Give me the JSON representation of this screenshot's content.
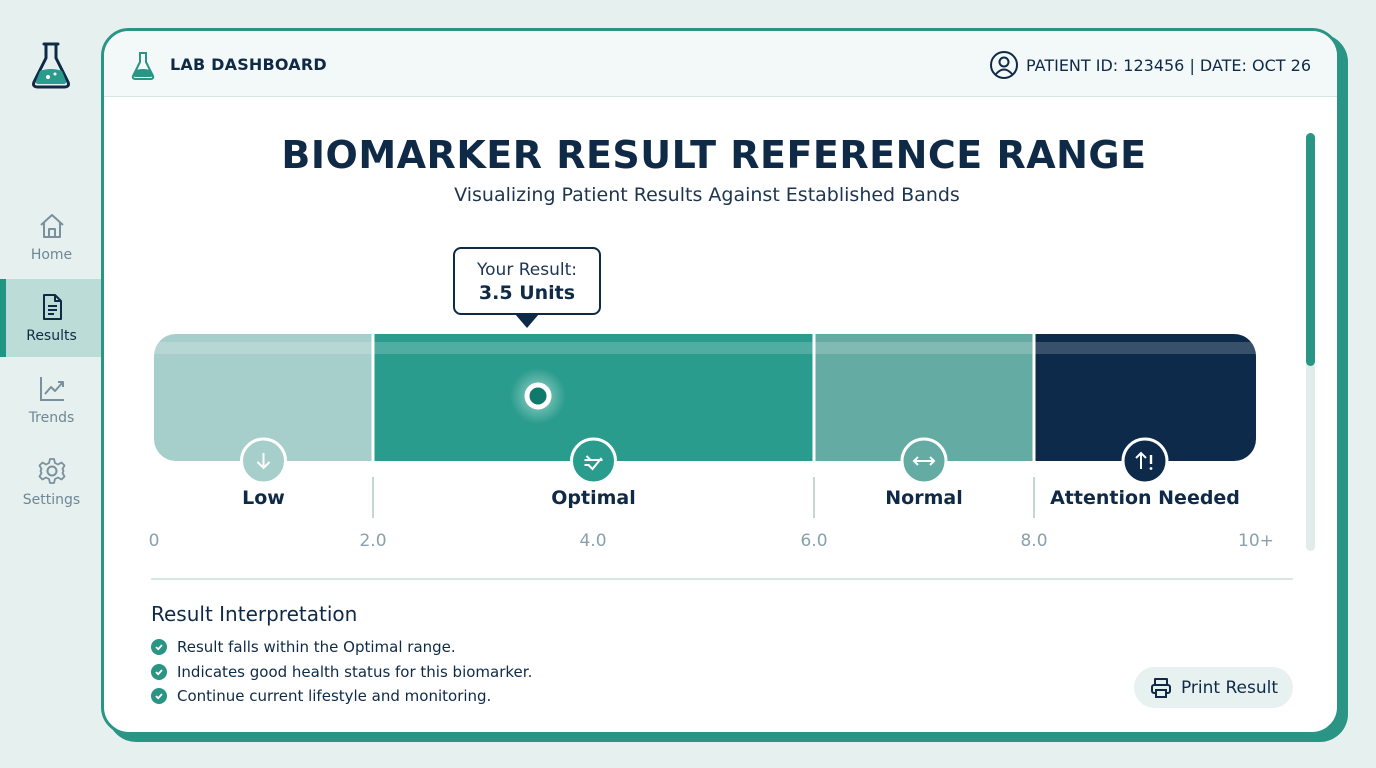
{
  "sidebar": {
    "logo_icon": "flask-icon",
    "items": [
      {
        "label": "Home",
        "icon": "home-icon",
        "active": false
      },
      {
        "label": "Results",
        "icon": "document-icon",
        "active": true
      },
      {
        "label": "Trends",
        "icon": "trend-chart-icon",
        "active": false
      },
      {
        "label": "Settings",
        "icon": "gear-icon",
        "active": false
      }
    ]
  },
  "header": {
    "title": "LAB DASHBOARD",
    "patient_info": "PATIENT ID: 123456 | DATE: OCT 26"
  },
  "main": {
    "title": "BIOMARKER RESULT REFERENCE RANGE",
    "subtitle": "Visualizing Patient Results Against Established Bands"
  },
  "gauge": {
    "tooltip_label": "Your Result:",
    "tooltip_value": "3.5 Units",
    "result_value": 3.5,
    "scale_min": 0,
    "scale_max": 10,
    "bands": [
      {
        "name": "Low",
        "from": 0,
        "to": 2,
        "color": "#a6cfcb",
        "icon": "arrow-down-icon"
      },
      {
        "name": "Optimal",
        "from": 2,
        "to": 6,
        "color": "#2a9c8d",
        "icon": "check-balance-icon"
      },
      {
        "name": "Normal",
        "from": 6,
        "to": 8,
        "color": "#64aba3",
        "icon": "arrow-both-icon"
      },
      {
        "name": "Attention Needed",
        "from": 8,
        "to": 10,
        "color": "#0e2a4a",
        "icon": "arrow-up-alert-icon"
      }
    ],
    "ticks": [
      {
        "value": 0,
        "label": "0"
      },
      {
        "value": 2,
        "label": "2.0"
      },
      {
        "value": 4,
        "label": "4.0"
      },
      {
        "value": 6,
        "label": "6.0"
      },
      {
        "value": 8,
        "label": "8.0"
      },
      {
        "value": 10,
        "label": "10+"
      }
    ]
  },
  "interpretation": {
    "title": "Result Interpretation",
    "items": [
      "Result falls within the Optimal range.",
      "Indicates good health status for this biomarker.",
      "Continue current lifestyle and monitoring."
    ]
  },
  "actions": {
    "print_label": "Print Result",
    "print_icon": "printer-icon"
  },
  "colors": {
    "accent": "#2a9585",
    "navy": "#0f2a47",
    "background": "#e6f0ef"
  }
}
